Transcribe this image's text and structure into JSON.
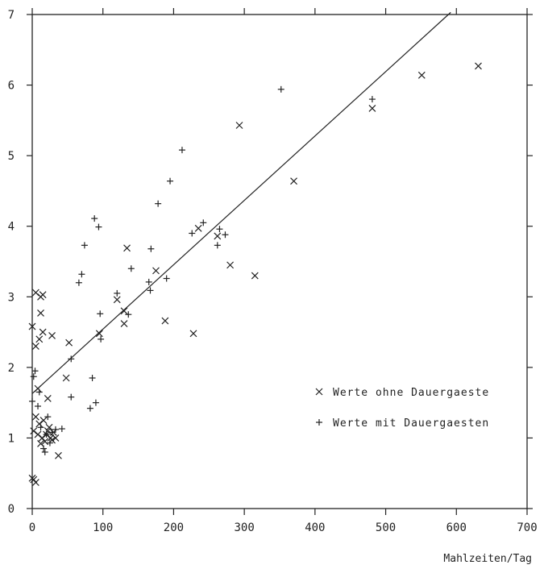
{
  "chart_data": {
    "type": "scatter",
    "title": "",
    "xlabel": "Mahlzeiten/Tag",
    "ylabel": "",
    "xlim": [
      0,
      700
    ],
    "ylim": [
      0,
      7
    ],
    "x_ticks": [
      "0",
      "100",
      "200",
      "300",
      "400",
      "500",
      "600",
      "700"
    ],
    "y_ticks": [
      "0",
      "1",
      "2",
      "3",
      "4",
      "5",
      "6",
      "7"
    ],
    "grid": false,
    "legend_position": "lower-right",
    "series": [
      {
        "name": "Werte ohne Dauergaeste",
        "marker": "x",
        "points": [
          [
            0,
            0.43
          ],
          [
            2,
            0.41
          ],
          [
            5,
            0.37
          ],
          [
            2,
            1.1
          ],
          [
            5,
            1.3
          ],
          [
            8,
            1.05
          ],
          [
            10,
            1.2
          ],
          [
            12,
            0.92
          ],
          [
            14,
            1.0
          ],
          [
            16,
            1.25
          ],
          [
            18,
            0.95
          ],
          [
            20,
            1.05
          ],
          [
            22,
            1.1
          ],
          [
            24,
            1.15
          ],
          [
            26,
            1.0
          ],
          [
            28,
            0.97
          ],
          [
            30,
            1.08
          ],
          [
            33,
            1.0
          ],
          [
            8,
            1.7
          ],
          [
            22,
            1.56
          ],
          [
            5,
            2.3
          ],
          [
            10,
            2.4
          ],
          [
            0,
            2.58
          ],
          [
            15,
            2.5
          ],
          [
            28,
            2.45
          ],
          [
            12,
            2.77
          ],
          [
            5,
            3.06
          ],
          [
            12,
            3.0
          ],
          [
            15,
            3.03
          ],
          [
            48,
            1.85
          ],
          [
            52,
            2.35
          ],
          [
            37,
            0.75
          ],
          [
            95,
            2.48
          ],
          [
            130,
            2.8
          ],
          [
            130,
            2.62
          ],
          [
            120,
            2.96
          ],
          [
            175,
            3.37
          ],
          [
            134,
            3.69
          ],
          [
            188,
            2.66
          ],
          [
            228,
            2.48
          ],
          [
            235,
            3.97
          ],
          [
            262,
            3.86
          ],
          [
            280,
            3.45
          ],
          [
            315,
            3.3
          ],
          [
            293,
            5.43
          ],
          [
            370,
            4.64
          ],
          [
            481,
            5.67
          ],
          [
            551,
            6.14
          ],
          [
            631,
            6.27
          ]
        ]
      },
      {
        "name": "Werte mit Dauergaesten",
        "marker": "+",
        "points": [
          [
            0,
            1.52
          ],
          [
            2,
            1.87
          ],
          [
            4,
            1.95
          ],
          [
            8,
            1.45
          ],
          [
            10,
            1.65
          ],
          [
            12,
            1.15
          ],
          [
            16,
            0.85
          ],
          [
            18,
            0.8
          ],
          [
            20,
            1.05
          ],
          [
            22,
            1.3
          ],
          [
            25,
            0.93
          ],
          [
            28,
            1.08
          ],
          [
            33,
            1.12
          ],
          [
            42,
            1.13
          ],
          [
            55,
            2.12
          ],
          [
            55,
            1.58
          ],
          [
            66,
            3.2
          ],
          [
            70,
            3.32
          ],
          [
            74,
            3.73
          ],
          [
            82,
            1.42
          ],
          [
            85,
            1.85
          ],
          [
            90,
            1.5
          ],
          [
            88,
            4.11
          ],
          [
            94,
            3.99
          ],
          [
            96,
            2.76
          ],
          [
            97,
            2.4
          ],
          [
            140,
            3.4
          ],
          [
            136,
            2.75
          ],
          [
            120,
            3.05
          ],
          [
            165,
            3.21
          ],
          [
            167,
            3.09
          ],
          [
            168,
            3.68
          ],
          [
            178,
            4.32
          ],
          [
            190,
            3.26
          ],
          [
            195,
            4.64
          ],
          [
            212,
            5.08
          ],
          [
            226,
            3.9
          ],
          [
            242,
            4.05
          ],
          [
            262,
            3.73
          ],
          [
            265,
            3.96
          ],
          [
            273,
            3.88
          ],
          [
            352,
            5.94
          ],
          [
            481,
            5.8
          ]
        ]
      }
    ],
    "fit_line": {
      "x": [
        0,
        592
      ],
      "y": [
        1.63,
        7.03
      ]
    }
  }
}
